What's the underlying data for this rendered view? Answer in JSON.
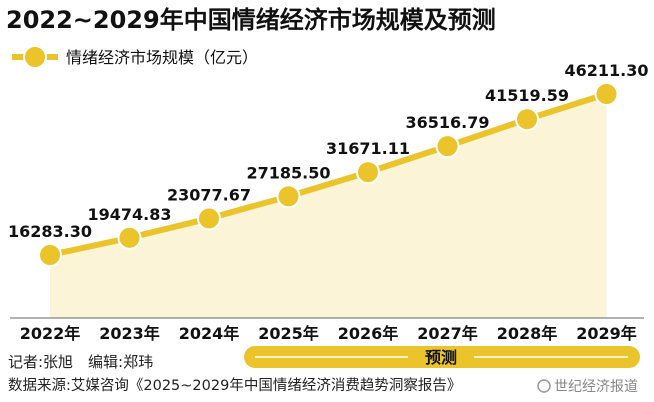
{
  "chart_data": {
    "type": "area",
    "title": "2022~2029年中国情绪经济市场规模及预测",
    "legend": {
      "label": "情绪经济市场规模（亿元）",
      "placement": "top-left"
    },
    "categories": [
      "2022年",
      "2023年",
      "2024年",
      "2025年",
      "2026年",
      "2027年",
      "2028年",
      "2029年"
    ],
    "series": [
      {
        "name": "情绪经济市场规模（亿元）",
        "values": [
          16283.3,
          19474.83,
          23077.67,
          27185.5,
          31671.11,
          36516.79,
          41519.59,
          46211.3
        ],
        "labels": [
          "16283.30",
          "19474.83",
          "23077.67",
          "27185.50",
          "31671.11",
          "36516.79",
          "41519.59",
          "46211.30"
        ]
      }
    ],
    "ylim": [
      0,
      50000
    ],
    "grid": false,
    "forecast_label": "预测",
    "forecast_range": [
      "2026年",
      "2029年"
    ],
    "colors": {
      "line": "#EBC42B",
      "fill": "#FCF4D6",
      "bar": "#EBC42B",
      "text": "#111111",
      "footer": "#222222"
    }
  },
  "footer": {
    "credits": "记者:张旭　编辑:郑玮",
    "source": "数据来源:艾媒咨询《2025~2029年中国情绪经济消费趋势洞察报告》",
    "watermark": "世纪经济报道"
  }
}
